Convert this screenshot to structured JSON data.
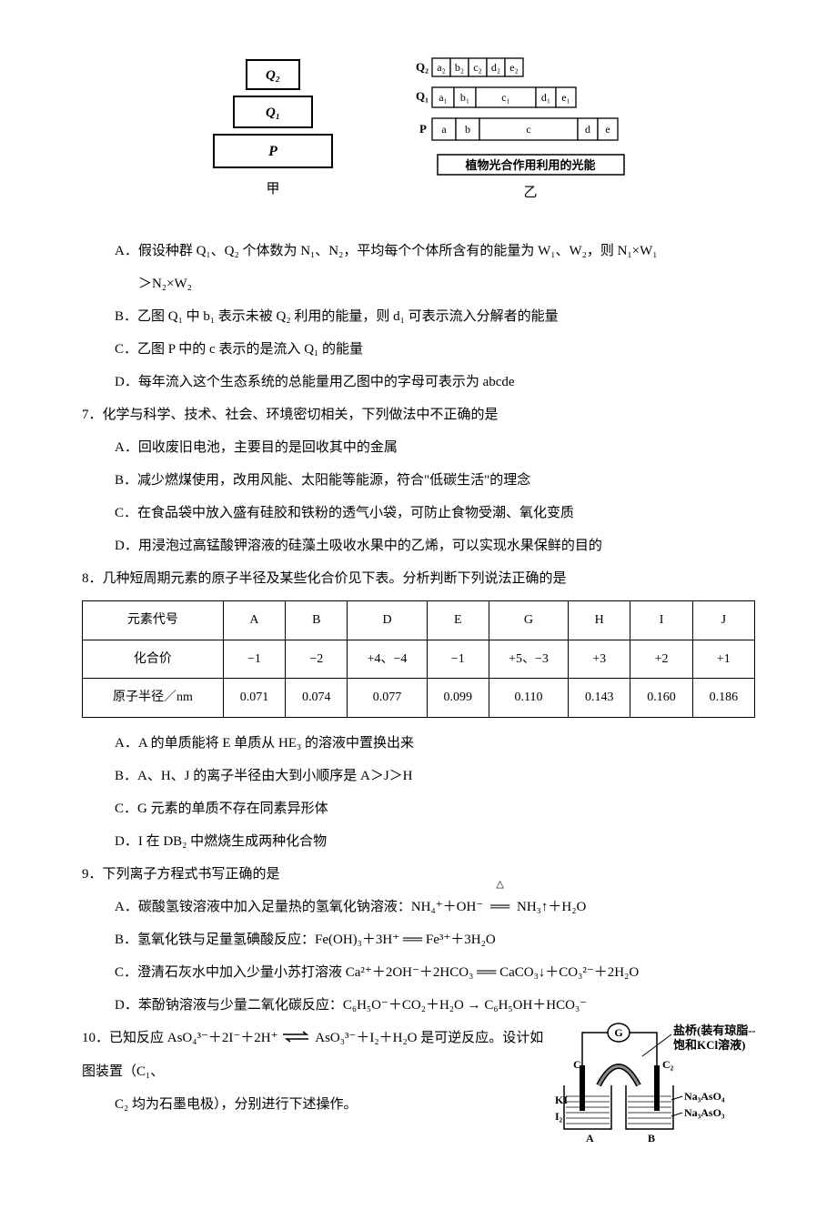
{
  "figure_top": {
    "left": {
      "box_top": "Q₂",
      "box_mid": "Q₁",
      "box_bot": "P",
      "caption": "甲"
    },
    "right": {
      "row_q2_labels": [
        "a₂",
        "b₂",
        "c₂",
        "d₂",
        "e₂"
      ],
      "row_q1_labels": [
        "a₁",
        "b₁",
        "c₁",
        "d₁",
        "e₁"
      ],
      "row_p_labels": [
        "a",
        "b",
        "c",
        "d",
        "e"
      ],
      "row_q2_prefix": "Q₂",
      "row_q1_prefix": "Q₁",
      "row_p_prefix": "P",
      "bottom_bar": "植物光合作用利用的光能",
      "caption": "乙"
    },
    "colors": {
      "stroke": "#000000",
      "bg": "#ffffff"
    }
  },
  "pre_options": {
    "A_line1": "A．假设种群 Q₁、Q₂ 个体数为 N₁、N₂，平均每个个体所含有的能量为 W₁、W₂，则 N₁×W₁",
    "A_line2": "＞N₂×W₂",
    "B": "B．乙图 Q₁ 中 b₁ 表示未被 Q₂ 利用的能量，则 d₁ 可表示流入分解者的能量",
    "C": "C．乙图 P 中的 c 表示的是流入 Q₁ 的能量",
    "D": "D．每年流入这个生态系统的总能量用乙图中的字母可表示为 abcde"
  },
  "q7": {
    "stem": "7．化学与科学、技术、社会、环境密切相关，下列做法中不正确的是",
    "A": "A．回收废旧电池，主要目的是回收其中的金属",
    "B": "B．减少燃煤使用，改用风能、太阳能等能源，符合\"低碳生活\"的理念",
    "C": "C．在食品袋中放入盛有硅胶和铁粉的透气小袋，可防止食物受潮、氧化变质",
    "D": "D．用浸泡过高锰酸钾溶液的硅藻土吸收水果中的乙烯，可以实现水果保鲜的目的"
  },
  "q8": {
    "stem": "8．几种短周期元素的原子半径及某些化合价见下表。分析判断下列说法正确的是",
    "header": [
      "元素代号",
      "A",
      "B",
      "D",
      "E",
      "G",
      "H",
      "I",
      "J"
    ],
    "row_valence_label": "化合价",
    "row_valence": [
      "−1",
      "−2",
      "+4、−4",
      "−1",
      "+5、−3",
      "+3",
      "+2",
      "+1"
    ],
    "row_radius_label": "原子半径／nm",
    "row_radius": [
      "0.071",
      "0.074",
      "0.077",
      "0.099",
      "0.110",
      "0.143",
      "0.160",
      "0.186"
    ],
    "A": "A．A 的单质能将 E 单质从 HE₃ 的溶液中置换出来",
    "B": "B．A、H、J 的离子半径由大到小顺序是 A＞J＞H",
    "C": "C．G 元素的单质不存在同素异形体",
    "D": "D．I 在 DB₂ 中燃烧生成两种化合物"
  },
  "q9": {
    "stem": "9．下列离子方程式书写正确的是",
    "A_pre": "A．碳酸氢铵溶液中加入足量热的氢氧化钠溶液：NH₄⁺＋OH⁻ ",
    "A_post": " NH₃↑＋H₂O",
    "B": "B．氢氧化铁与足量氢碘酸反应：Fe(OH)₃＋3H⁺ ══ Fe³⁺＋3H₂O",
    "C": "C．澄清石灰水中加入少量小苏打溶液  Ca²⁺＋2OH⁻＋2HCO₃ ══ CaCO₃↓＋CO₃²⁻＋2H₂O",
    "D": "D．苯酚钠溶液与少量二氧化碳反应：C₆H₅O⁻＋CO₂＋H₂O → C₆H₅OH＋HCO₃⁻"
  },
  "q10": {
    "stem_pre": "10．已知反应 AsO₄³⁻＋2I⁻＋2H⁺ ",
    "stem_post": " AsO₃³⁻＋I₂＋H₂O 是可逆反应。设计如图装置（C₁、",
    "stem_line2": "C₂ 均为石墨电极），分别进行下述操作。",
    "fig": {
      "g_label": "G",
      "bridge_label_1": "盐桥(装有琼脂--",
      "bridge_label_2": "饱和KCl溶液)",
      "c1": "C₁",
      "c2": "C₂",
      "left_top": "KI",
      "left_bot": "I₂",
      "right_top": "Na₃AsO₄",
      "right_bot": "Na₃AsO₃",
      "a": "A",
      "b": "B",
      "colors": {
        "line": "#000000",
        "bg": "#ffffff"
      }
    }
  },
  "style": {
    "font_size_pt": 11,
    "table_font_size_pt": 10.5,
    "text_color": "#000000",
    "background_color": "#ffffff",
    "table_border_color": "#000000"
  }
}
